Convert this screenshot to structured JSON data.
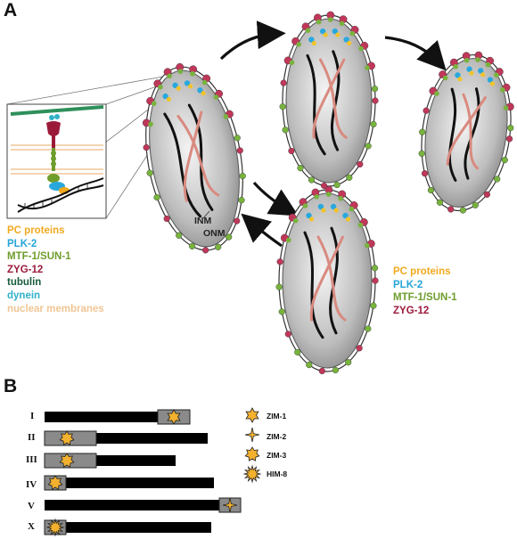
{
  "panels": {
    "a_label": "A",
    "b_label": "B"
  },
  "membrane_labels": {
    "inm": "INM",
    "onm": "ONM"
  },
  "legend_left": [
    {
      "text": "PC proteins",
      "color": "#f2a91f"
    },
    {
      "text": "PLK-2",
      "color": "#26a5d8"
    },
    {
      "text": "MTF-1/SUN-1",
      "color": "#6f9d2c"
    },
    {
      "text": "ZYG-12",
      "color": "#9b1a3a"
    },
    {
      "text": "tubulin",
      "color": "#175c3c"
    },
    {
      "text": "dynein",
      "color": "#2fb1c8"
    },
    {
      "text": "nuclear membranes",
      "color": "#f0c595"
    }
  ],
  "legend_right": [
    {
      "text": "PC proteins",
      "color": "#f2a91f"
    },
    {
      "text": "PLK-2",
      "color": "#26a5d8"
    },
    {
      "text": "MTF-1/SUN-1",
      "color": "#6f9d2c"
    },
    {
      "text": "ZYG-12",
      "color": "#9b1a3a"
    }
  ],
  "chromosomes": [
    {
      "label": "I",
      "length": 163,
      "zim": "ZIM-1",
      "end": "right"
    },
    {
      "label": "II",
      "length": 183,
      "zim": "ZIM-3",
      "end": "left"
    },
    {
      "label": "III",
      "length": 147,
      "zim": "ZIM-3",
      "end": "left"
    },
    {
      "label": "IV",
      "length": 190,
      "zim": "ZIM-3",
      "end": "left"
    },
    {
      "label": "V",
      "length": 218,
      "zim": "ZIM-2",
      "end": "right"
    },
    {
      "label": "X",
      "length": 187,
      "zim": "HIM-8",
      "end": "left"
    }
  ],
  "zim_legend": [
    "ZIM-1",
    "ZIM-2",
    "ZIM-3",
    "HIM-8"
  ],
  "colors": {
    "star_fill": "#f3b12f",
    "pc_box": "#8a8a8a",
    "chrom": "#000000",
    "nucleus": "#c9c9c9",
    "zyg12": "#c0375a",
    "sun1": "#78b33d",
    "plk2": "#29a8de"
  }
}
